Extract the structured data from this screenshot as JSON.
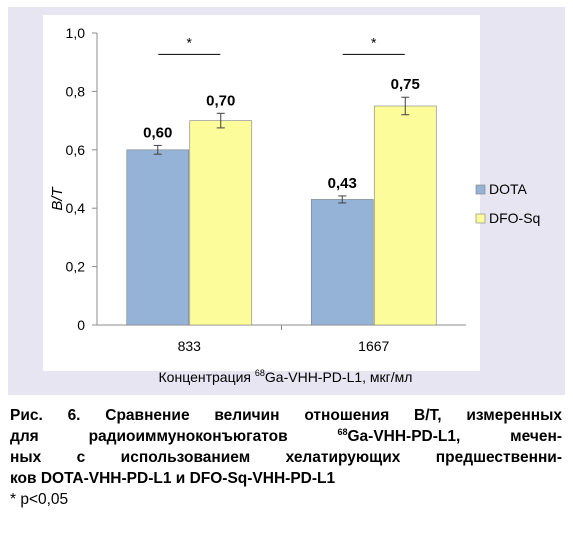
{
  "chart_data": {
    "type": "bar",
    "categories": [
      "833",
      "1667"
    ],
    "series": [
      {
        "name": "DOTA",
        "values": [
          0.6,
          0.43
        ],
        "errors": [
          0.015,
          0.012
        ],
        "labels": [
          "0,60",
          "0,43"
        ],
        "color": "#95b3d7"
      },
      {
        "name": "DFO-Sq",
        "values": [
          0.7,
          0.75
        ],
        "errors": [
          0.025,
          0.03
        ],
        "labels": [
          "0,70",
          "0,75"
        ],
        "color": "#fcfc9a"
      }
    ],
    "ylabel": "B/T",
    "xlabel_prefix": "Концентрация ",
    "xlabel_sup": "68",
    "xlabel_suffix": "Ga-VHH-PD-L1, мкг/мл",
    "ylim": [
      0,
      1.0
    ],
    "yticks": [
      0,
      0.2,
      0.4,
      0.6,
      0.8,
      1.0
    ],
    "ytick_labels": [
      "0",
      "0,2",
      "0,4",
      "0,6",
      "0,8",
      "1,0"
    ],
    "significance": [
      {
        "category": "833",
        "label": "*"
      },
      {
        "category": "1667",
        "label": "*"
      }
    ],
    "legend_position": "right",
    "grid": false,
    "plot_background": "#ffffff",
    "frame_background": "#e7e5f1"
  },
  "caption": {
    "line1": "Рис. 6. Сравнение величин отношения B/T, измеренных",
    "line2_a": "для радиоиммуноконъюгатов ",
    "line2_sup": "68",
    "line2_b": "Ga-VHH-PD-L1, мечен-",
    "line3": "ных с использованием хелатирующих предшественни-",
    "line4": "ков DOTA-VHH-PD-L1 и DFO-Sq-VHH-PD-L1",
    "note": "* p<0,05"
  }
}
